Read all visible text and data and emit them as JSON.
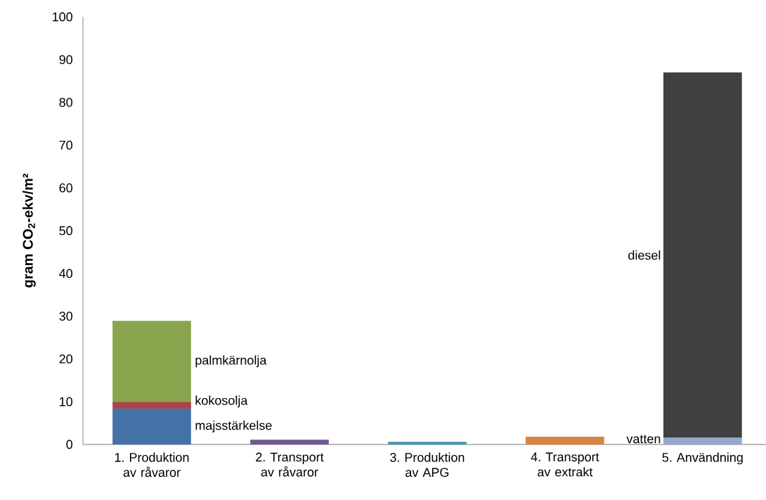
{
  "chart_data": {
    "type": "bar",
    "stacked": true,
    "ylabel": "gram CO$_{2}$-ekv/m²",
    "categories": [
      "1. Produktion av råvaror",
      "2. Transport av råvaror",
      "3. Produktion av APG",
      "4. Transport av extrakt",
      "5. Användning"
    ],
    "series": [
      {
        "name": "majsstärkelse",
        "color": "#4572a7",
        "values": [
          8.4,
          null,
          null,
          null,
          null
        ]
      },
      {
        "name": "kokosolja",
        "color": "#aa4643",
        "values": [
          1.6,
          null,
          null,
          null,
          null
        ]
      },
      {
        "name": "palmkärnolja",
        "color": "#89a54e",
        "values": [
          18.9,
          null,
          null,
          null,
          null
        ]
      },
      {
        "color": "#71588f",
        "values": [
          null,
          1.1,
          null,
          null,
          null
        ]
      },
      {
        "color": "#4198af",
        "values": [
          null,
          null,
          0.6,
          null,
          null
        ]
      },
      {
        "color": "#db843d",
        "values": [
          null,
          null,
          null,
          1.8,
          null
        ]
      },
      {
        "name": "vatten",
        "color": "#93a9cf",
        "values": [
          null,
          null,
          null,
          null,
          1.6
        ]
      },
      {
        "name": "diesel",
        "color": "#404040",
        "values": [
          null,
          null,
          null,
          null,
          85.4
        ]
      }
    ],
    "ylim": [
      0,
      100
    ],
    "yticks": [
      0,
      10,
      20,
      30,
      40,
      50,
      60,
      70,
      80,
      90,
      100
    ],
    "grid": false
  }
}
